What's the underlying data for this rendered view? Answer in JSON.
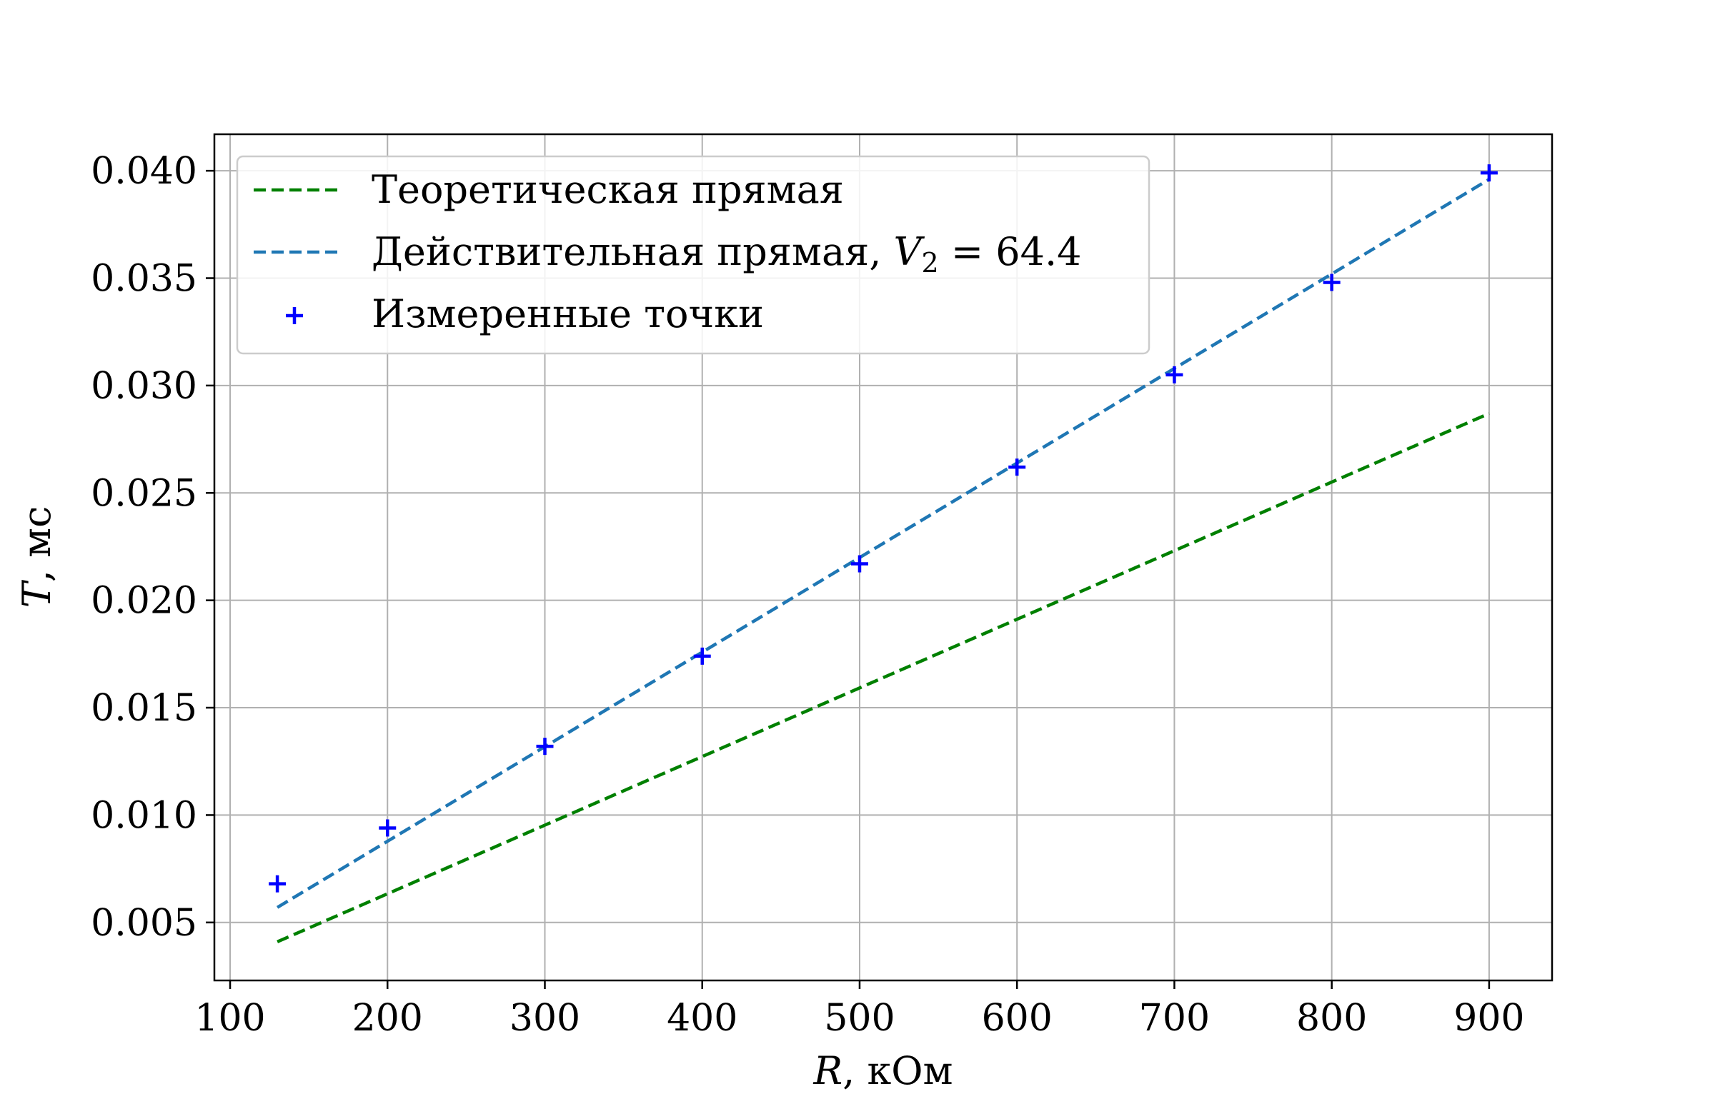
{
  "chart_data": {
    "type": "line",
    "xlabel_var": "R",
    "xlabel_unit": ", кОм",
    "ylabel_var": "T",
    "ylabel_unit": ", мс",
    "xlim": [
      90,
      940
    ],
    "ylim": [
      0.0023,
      0.0417
    ],
    "xticks": [
      100,
      200,
      300,
      400,
      500,
      600,
      700,
      800,
      900
    ],
    "yticks": [
      0.005,
      0.01,
      0.015,
      0.02,
      0.025,
      0.03,
      0.035,
      0.04
    ],
    "ytick_labels": [
      "0.005",
      "0.010",
      "0.015",
      "0.020",
      "0.025",
      "0.030",
      "0.035",
      "0.040"
    ],
    "grid": true,
    "legend_position": "upper-left",
    "series": [
      {
        "name": "Теоретическая прямая",
        "kind": "dashed-line",
        "color": "#008000",
        "x": [
          130,
          900
        ],
        "y": [
          0.0041,
          0.0287
        ]
      },
      {
        "name": "Действительная прямая, ",
        "name_math_var": "V",
        "name_math_sub": "2",
        "name_math_value": " = 64.4",
        "kind": "dashed-line",
        "color": "#1f77b4",
        "x": [
          130,
          900
        ],
        "y": [
          0.0057,
          0.0396
        ]
      },
      {
        "name": "Измеренные точки",
        "kind": "scatter-plus",
        "color": "#0000ff",
        "x": [
          130,
          200,
          300,
          400,
          500,
          600,
          700,
          800,
          900
        ],
        "y": [
          0.0068,
          0.0094,
          0.0132,
          0.0174,
          0.0217,
          0.0262,
          0.0305,
          0.0348,
          0.0399
        ]
      }
    ]
  }
}
